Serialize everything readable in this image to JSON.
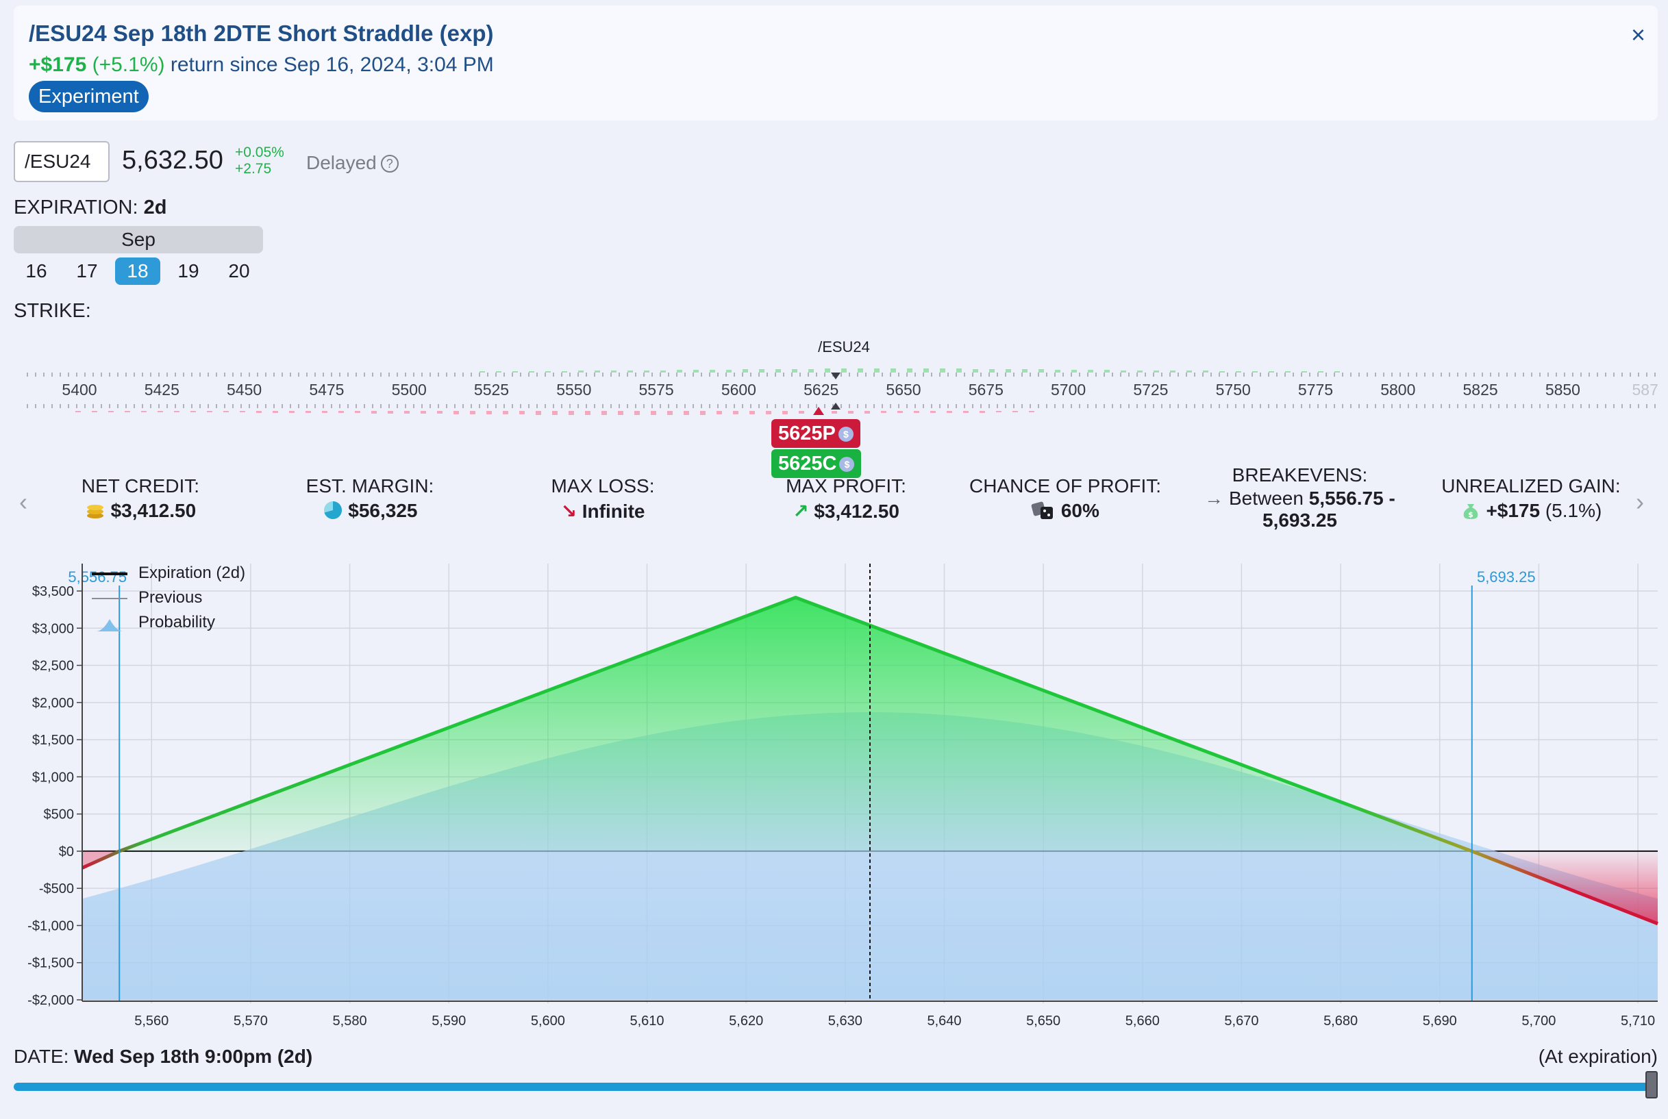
{
  "header": {
    "title": "/ESU24 Sep 18th 2DTE Short Straddle (exp)",
    "return_amount": "+$175",
    "return_pct": "(+5.1%)",
    "return_text": "return since Sep 16, 2024, 3:04 PM",
    "badge": "Experiment",
    "close_label": "×"
  },
  "ticker": {
    "symbol": "/ESU24",
    "price": "5,632.50",
    "change_pct": "+0.05%",
    "change_abs": "+2.75",
    "delayed": "Delayed",
    "help": "?"
  },
  "expiration": {
    "label": "EXPIRATION:",
    "value": "2d",
    "month": "Sep",
    "days": [
      "16",
      "17",
      "18",
      "19",
      "20"
    ],
    "selected_day": "18"
  },
  "strike": {
    "label": "STRIKE:",
    "underlying_label": "/ESU24",
    "ticks": [
      "5400",
      "5425",
      "5450",
      "5475",
      "5500",
      "5525",
      "5550",
      "5575",
      "5600",
      "5625",
      "5650",
      "5675",
      "5700",
      "5725",
      "5750",
      "5775",
      "5800",
      "5825",
      "5850",
      "587"
    ],
    "put_tag": "5625P",
    "call_tag": "5625C",
    "tag_icon": "$"
  },
  "stats": {
    "net_credit": {
      "label": "NET CREDIT:",
      "value": "$3,412.50"
    },
    "est_margin": {
      "label": "EST. MARGIN:",
      "value": "$56,325"
    },
    "max_loss": {
      "label": "MAX LOSS:",
      "value": "Infinite"
    },
    "max_profit": {
      "label": "MAX PROFIT:",
      "value": "$3,412.50"
    },
    "chance": {
      "label": "CHANCE OF PROFIT:",
      "value": "60%"
    },
    "breakevens": {
      "label": "BREAKEVENS:",
      "prefix": "Between",
      "line1": "5,556.75 -",
      "line2": "5,693.25"
    },
    "unrealized": {
      "label": "UNREALIZED GAIN:",
      "value": "+$175",
      "pct": "(5.1%)"
    }
  },
  "legend": {
    "expiration": "Expiration (2d)",
    "previous": "Previous",
    "probability": "Probability"
  },
  "chart_data": {
    "type": "line",
    "xlabel": "",
    "ylabel": "",
    "x_ticks": [
      5560,
      5570,
      5580,
      5590,
      5600,
      5610,
      5620,
      5630,
      5640,
      5650,
      5660,
      5670,
      5680,
      5690,
      5700,
      5710
    ],
    "x_tick_labels": [
      "5,560",
      "5,570",
      "5,580",
      "5,590",
      "5,600",
      "5,610",
      "5,620",
      "5,630",
      "5,640",
      "5,650",
      "5,660",
      "5,670",
      "5,680",
      "5,690",
      "5,700",
      "5,710"
    ],
    "y_ticks": [
      3500,
      3000,
      2500,
      2000,
      1500,
      1000,
      500,
      0,
      -500,
      -1000,
      -1500,
      -2000
    ],
    "y_tick_labels": [
      "$3,500",
      "$3,000",
      "$2,500",
      "$2,000",
      "$1,500",
      "$1,000",
      "$500",
      "$0",
      "-$500",
      "-$1,000",
      "-$1,500",
      "-$2,000"
    ],
    "xlim": [
      5553,
      5712
    ],
    "ylim": [
      -2000,
      3500
    ],
    "series": [
      {
        "name": "Expiration (2d)",
        "x": [
          5553,
          5556.75,
          5625,
          5693.25,
          5712
        ],
        "y": [
          -225,
          0,
          3412.5,
          0,
          -975
        ]
      }
    ],
    "current_price": 5632.5,
    "breakevens": [
      5556.75,
      5693.25
    ],
    "breakeven_labels": [
      "5,556.75",
      "5,693.25"
    ],
    "grid": true
  },
  "date": {
    "label": "DATE:",
    "value": "Wed Sep 18th 9:00pm (2d)",
    "right": "(At expiration)"
  },
  "colors": {
    "profit": "#1fc63a",
    "loss": "#d11538",
    "breakeven": "#2b9ad6",
    "accent": "#1264b4"
  }
}
